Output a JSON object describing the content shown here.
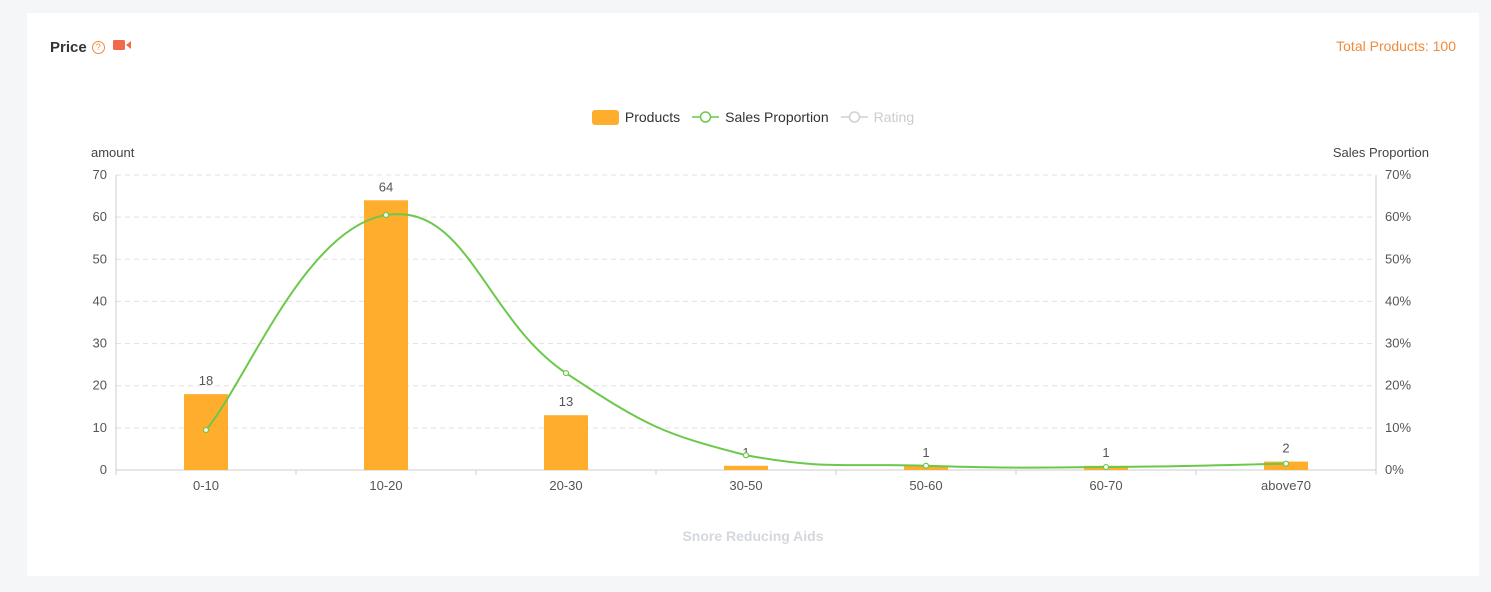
{
  "header": {
    "title": "Price",
    "help_icon": "question-circle-icon",
    "video_icon": "video-camera-icon",
    "total_label": "Total Products: 100"
  },
  "colors": {
    "bar": "#ffad2d",
    "line": "#6cc84a",
    "rating": "#d0d0d0",
    "accent": "#f08a3c",
    "video": "#f06a4a"
  },
  "chart_data": {
    "type": "bar",
    "legend": [
      {
        "name": "Products",
        "active": true
      },
      {
        "name": "Sales Proportion",
        "active": true
      },
      {
        "name": "Rating",
        "active": false
      }
    ],
    "legend_position": "top-center",
    "categories": [
      "0-10",
      "10-20",
      "20-30",
      "30-50",
      "50-60",
      "60-70",
      "above70"
    ],
    "series": [
      {
        "name": "Products",
        "type": "bar",
        "axis": "left",
        "values": [
          18,
          64,
          13,
          1,
          1,
          1,
          2
        ]
      },
      {
        "name": "Sales Proportion",
        "type": "line",
        "smooth": true,
        "axis": "right",
        "values": [
          9.5,
          60.5,
          23,
          3.5,
          1,
          0.7,
          1.5
        ]
      }
    ],
    "ylabel_left": "amount",
    "ylabel_right": "Sales Proportion",
    "ylim_left": [
      0,
      70
    ],
    "ylim_right": [
      0,
      70
    ],
    "yticks_left": [
      "0",
      "10",
      "20",
      "30",
      "40",
      "50",
      "60",
      "70"
    ],
    "yticks_right": [
      "0%",
      "10%",
      "20%",
      "30%",
      "40%",
      "50%",
      "60%",
      "70%"
    ],
    "xlabel": "Snore Reducing Aids",
    "grid": true
  }
}
